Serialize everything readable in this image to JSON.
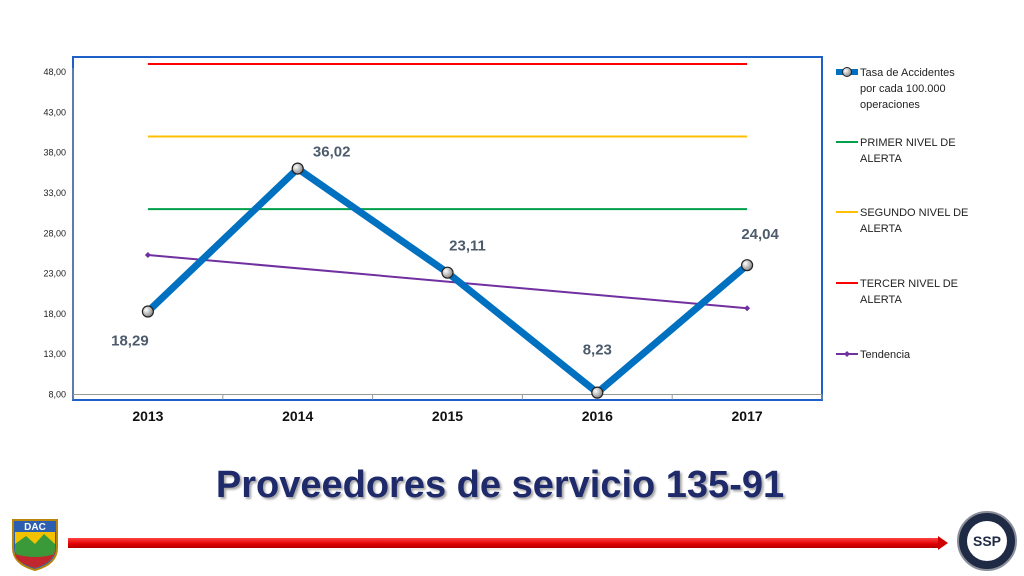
{
  "chart_data": {
    "type": "line",
    "title": "Proveedores de servicio 135-91",
    "categories": [
      "2013",
      "2014",
      "2015",
      "2016",
      "2017"
    ],
    "ylim": [
      8,
      50
    ],
    "yticks": [
      8,
      13,
      18,
      23,
      28,
      33,
      38,
      43,
      48
    ],
    "ytick_labels": [
      "8,00",
      "13,00",
      "18,00",
      "23,00",
      "28,00",
      "33,00",
      "38,00",
      "43,00",
      "48,00"
    ],
    "grid": false,
    "legend_position": "right",
    "series": [
      {
        "name": "Tasa de Accidentes por cada 100.000 operaciones",
        "legend_lines": [
          "Tasa de Accidentes",
          "por cada 100.000",
          "operaciones"
        ],
        "values": [
          18.29,
          36.02,
          23.11,
          8.23,
          24.04
        ],
        "labels": [
          "18,29",
          "36,02",
          "23,11",
          "8,23",
          "24,04"
        ],
        "color": "#0070c0"
      },
      {
        "name": "PRIMER NIVEL DE ALERTA",
        "legend_lines": [
          "PRIMER NIVEL DE",
          "ALERTA"
        ],
        "values": [
          31,
          31,
          31,
          31,
          31
        ],
        "color": "#00a04a"
      },
      {
        "name": "SEGUNDO NIVEL DE ALERTA",
        "legend_lines": [
          "SEGUNDO NIVEL DE",
          "ALERTA"
        ],
        "values": [
          40,
          40,
          40,
          40,
          40
        ],
        "color": "#ffc000"
      },
      {
        "name": "TERCER NIVEL DE ALERTA",
        "legend_lines": [
          "TERCER NIVEL DE",
          "ALERTA"
        ],
        "values": [
          49,
          49,
          49,
          49,
          49
        ],
        "color": "#ff0000"
      },
      {
        "name": "Tendencia",
        "legend_lines": [
          "Tendencia"
        ],
        "values": [
          25.3,
          18.7
        ],
        "x": [
          "2013",
          "2017"
        ],
        "color": "#7030a0"
      }
    ]
  },
  "logos": {
    "left_text": "DAC",
    "right_text": "SSP"
  }
}
